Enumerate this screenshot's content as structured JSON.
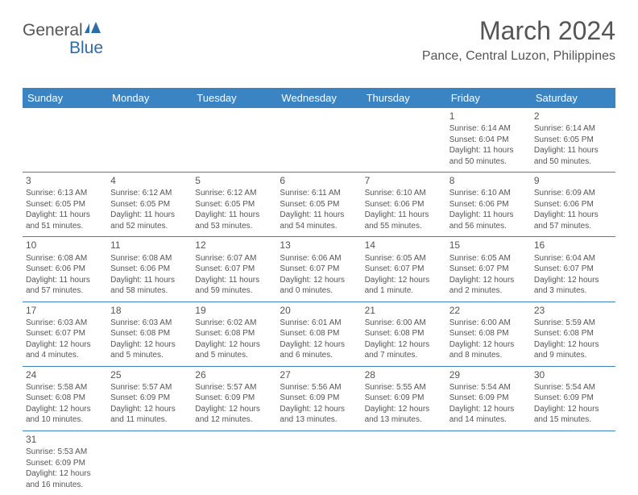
{
  "logo": {
    "text1": "General",
    "text2": "Blue"
  },
  "title": "March 2024",
  "location": "Pance, Central Luzon, Philippines",
  "colors": {
    "headerBg": "#3a84c4",
    "headerText": "#ffffff",
    "text": "#555555",
    "accentBlue": "#2c6ca8"
  },
  "dayHeaders": [
    "Sunday",
    "Monday",
    "Tuesday",
    "Wednesday",
    "Thursday",
    "Friday",
    "Saturday"
  ],
  "weeks": [
    [
      null,
      null,
      null,
      null,
      null,
      {
        "n": "1",
        "sr": "Sunrise: 6:14 AM",
        "ss": "Sunset: 6:04 PM",
        "d1": "Daylight: 11 hours",
        "d2": "and 50 minutes."
      },
      {
        "n": "2",
        "sr": "Sunrise: 6:14 AM",
        "ss": "Sunset: 6:05 PM",
        "d1": "Daylight: 11 hours",
        "d2": "and 50 minutes."
      }
    ],
    [
      {
        "n": "3",
        "sr": "Sunrise: 6:13 AM",
        "ss": "Sunset: 6:05 PM",
        "d1": "Daylight: 11 hours",
        "d2": "and 51 minutes."
      },
      {
        "n": "4",
        "sr": "Sunrise: 6:12 AM",
        "ss": "Sunset: 6:05 PM",
        "d1": "Daylight: 11 hours",
        "d2": "and 52 minutes."
      },
      {
        "n": "5",
        "sr": "Sunrise: 6:12 AM",
        "ss": "Sunset: 6:05 PM",
        "d1": "Daylight: 11 hours",
        "d2": "and 53 minutes."
      },
      {
        "n": "6",
        "sr": "Sunrise: 6:11 AM",
        "ss": "Sunset: 6:05 PM",
        "d1": "Daylight: 11 hours",
        "d2": "and 54 minutes."
      },
      {
        "n": "7",
        "sr": "Sunrise: 6:10 AM",
        "ss": "Sunset: 6:06 PM",
        "d1": "Daylight: 11 hours",
        "d2": "and 55 minutes."
      },
      {
        "n": "8",
        "sr": "Sunrise: 6:10 AM",
        "ss": "Sunset: 6:06 PM",
        "d1": "Daylight: 11 hours",
        "d2": "and 56 minutes."
      },
      {
        "n": "9",
        "sr": "Sunrise: 6:09 AM",
        "ss": "Sunset: 6:06 PM",
        "d1": "Daylight: 11 hours",
        "d2": "and 57 minutes."
      }
    ],
    [
      {
        "n": "10",
        "sr": "Sunrise: 6:08 AM",
        "ss": "Sunset: 6:06 PM",
        "d1": "Daylight: 11 hours",
        "d2": "and 57 minutes."
      },
      {
        "n": "11",
        "sr": "Sunrise: 6:08 AM",
        "ss": "Sunset: 6:06 PM",
        "d1": "Daylight: 11 hours",
        "d2": "and 58 minutes."
      },
      {
        "n": "12",
        "sr": "Sunrise: 6:07 AM",
        "ss": "Sunset: 6:07 PM",
        "d1": "Daylight: 11 hours",
        "d2": "and 59 minutes."
      },
      {
        "n": "13",
        "sr": "Sunrise: 6:06 AM",
        "ss": "Sunset: 6:07 PM",
        "d1": "Daylight: 12 hours",
        "d2": "and 0 minutes."
      },
      {
        "n": "14",
        "sr": "Sunrise: 6:05 AM",
        "ss": "Sunset: 6:07 PM",
        "d1": "Daylight: 12 hours",
        "d2": "and 1 minute."
      },
      {
        "n": "15",
        "sr": "Sunrise: 6:05 AM",
        "ss": "Sunset: 6:07 PM",
        "d1": "Daylight: 12 hours",
        "d2": "and 2 minutes."
      },
      {
        "n": "16",
        "sr": "Sunrise: 6:04 AM",
        "ss": "Sunset: 6:07 PM",
        "d1": "Daylight: 12 hours",
        "d2": "and 3 minutes."
      }
    ],
    [
      {
        "n": "17",
        "sr": "Sunrise: 6:03 AM",
        "ss": "Sunset: 6:07 PM",
        "d1": "Daylight: 12 hours",
        "d2": "and 4 minutes."
      },
      {
        "n": "18",
        "sr": "Sunrise: 6:03 AM",
        "ss": "Sunset: 6:08 PM",
        "d1": "Daylight: 12 hours",
        "d2": "and 5 minutes."
      },
      {
        "n": "19",
        "sr": "Sunrise: 6:02 AM",
        "ss": "Sunset: 6:08 PM",
        "d1": "Daylight: 12 hours",
        "d2": "and 5 minutes."
      },
      {
        "n": "20",
        "sr": "Sunrise: 6:01 AM",
        "ss": "Sunset: 6:08 PM",
        "d1": "Daylight: 12 hours",
        "d2": "and 6 minutes."
      },
      {
        "n": "21",
        "sr": "Sunrise: 6:00 AM",
        "ss": "Sunset: 6:08 PM",
        "d1": "Daylight: 12 hours",
        "d2": "and 7 minutes."
      },
      {
        "n": "22",
        "sr": "Sunrise: 6:00 AM",
        "ss": "Sunset: 6:08 PM",
        "d1": "Daylight: 12 hours",
        "d2": "and 8 minutes."
      },
      {
        "n": "23",
        "sr": "Sunrise: 5:59 AM",
        "ss": "Sunset: 6:08 PM",
        "d1": "Daylight: 12 hours",
        "d2": "and 9 minutes."
      }
    ],
    [
      {
        "n": "24",
        "sr": "Sunrise: 5:58 AM",
        "ss": "Sunset: 6:08 PM",
        "d1": "Daylight: 12 hours",
        "d2": "and 10 minutes."
      },
      {
        "n": "25",
        "sr": "Sunrise: 5:57 AM",
        "ss": "Sunset: 6:09 PM",
        "d1": "Daylight: 12 hours",
        "d2": "and 11 minutes."
      },
      {
        "n": "26",
        "sr": "Sunrise: 5:57 AM",
        "ss": "Sunset: 6:09 PM",
        "d1": "Daylight: 12 hours",
        "d2": "and 12 minutes."
      },
      {
        "n": "27",
        "sr": "Sunrise: 5:56 AM",
        "ss": "Sunset: 6:09 PM",
        "d1": "Daylight: 12 hours",
        "d2": "and 13 minutes."
      },
      {
        "n": "28",
        "sr": "Sunrise: 5:55 AM",
        "ss": "Sunset: 6:09 PM",
        "d1": "Daylight: 12 hours",
        "d2": "and 13 minutes."
      },
      {
        "n": "29",
        "sr": "Sunrise: 5:54 AM",
        "ss": "Sunset: 6:09 PM",
        "d1": "Daylight: 12 hours",
        "d2": "and 14 minutes."
      },
      {
        "n": "30",
        "sr": "Sunrise: 5:54 AM",
        "ss": "Sunset: 6:09 PM",
        "d1": "Daylight: 12 hours",
        "d2": "and 15 minutes."
      }
    ],
    [
      {
        "n": "31",
        "sr": "Sunrise: 5:53 AM",
        "ss": "Sunset: 6:09 PM",
        "d1": "Daylight: 12 hours",
        "d2": "and 16 minutes."
      },
      null,
      null,
      null,
      null,
      null,
      null
    ]
  ]
}
